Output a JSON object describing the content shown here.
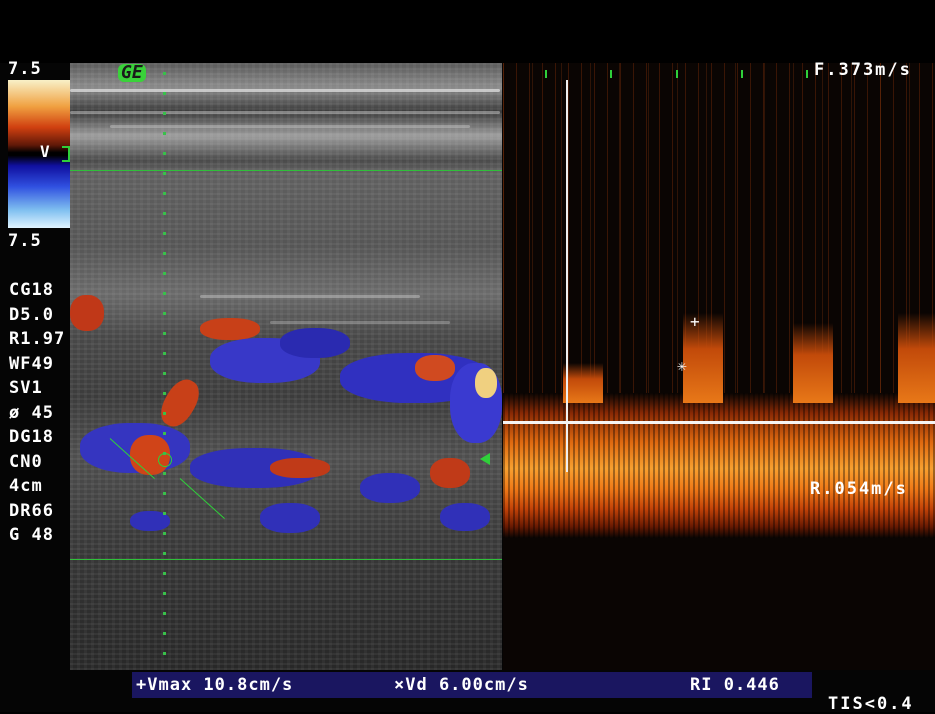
{
  "color_scale": {
    "top_value": "7.5",
    "bottom_value": "7.5",
    "mode_label": "V",
    "colors": {
      "positive": "#d04010",
      "negative": "#3050e0"
    }
  },
  "logo": "GE",
  "parameters": [
    "CG18",
    "D5.0",
    "R1.97",
    "WF49",
    "SV1",
    "ø 45",
    "DG18",
    "CN0",
    "4cm",
    "DR66",
    "G 48"
  ],
  "doppler": {
    "top_velocity": "F.373m/s",
    "bottom_velocity": "R.054m/s",
    "spectrum_color": "#f08020"
  },
  "measurements": {
    "vmax": "+Vmax 10.8cm/s",
    "vd": "×Vd 6.00cm/s",
    "ri": "RI 0.446"
  },
  "tis": "TIS<0.4",
  "icons": {
    "peak_marker": "plus-icon",
    "diastole_marker": "cross-icon",
    "focus_marker": "triangle-arrow-icon"
  }
}
